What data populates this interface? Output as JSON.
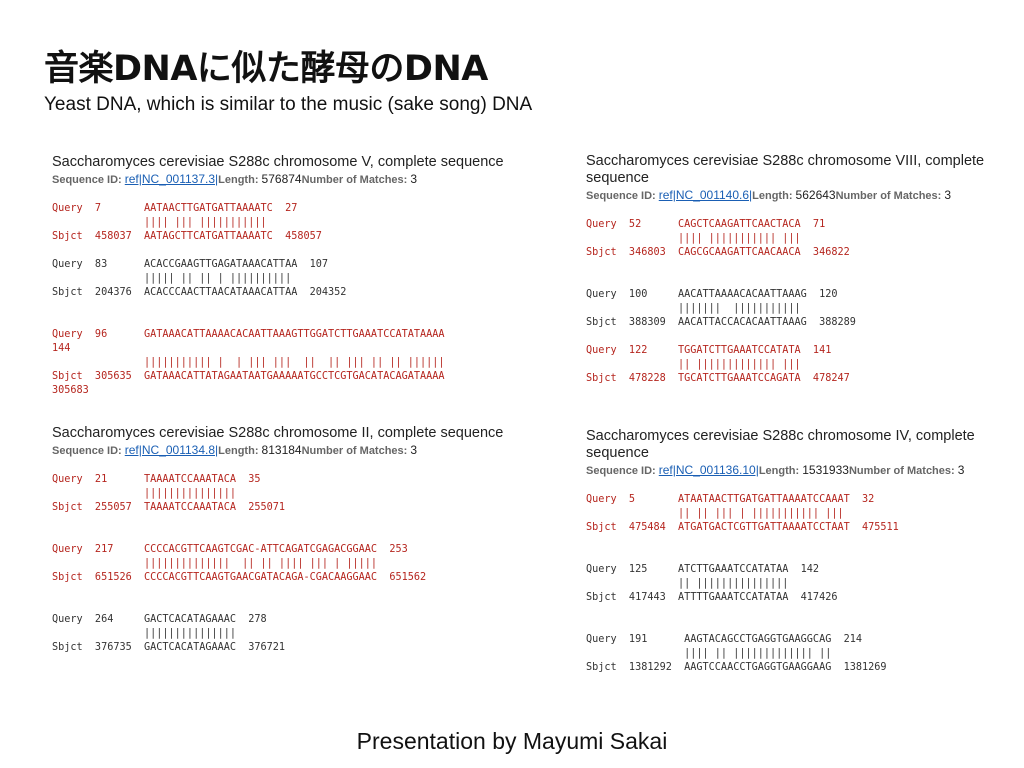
{
  "title": "音楽DNAに似た酵母のDNA",
  "subtitle": "Yeast DNA, which is similar to the music (sake song) DNA",
  "footer": "Presentation by Mayumi Sakai",
  "labels": {
    "seq_id": "Sequence ID: ",
    "length": "Length: ",
    "matches": "Number of Matches: "
  },
  "blocks": [
    {
      "title": "Saccharomyces cerevisiae S288c chromosome V, complete sequence",
      "ref": "ref|NC_001137.3|",
      "length": "576874",
      "matches": "3",
      "alignments": [
        {
          "highlight": true,
          "q": "Query  7       AATAACTTGATGATTAAAATC  27",
          "m": "               |||| ||| |||||||||||",
          "s": "Sbjct  458037  AATAGCTTCATGATTAAAATC  458057"
        },
        {
          "highlight": false,
          "q": "Query  83      ACACCGAAGTTGAGATAAACATTAA  107",
          "m": "               ||||| || || | ||||||||||",
          "s": "Sbjct  204376  ACACCCAACTTAACATAAACATTAA  204352"
        },
        {
          "highlight": true,
          "q": "Query  96      GATAAACATTAAAACACAATTAAAGTTGGATCTTGAAATCCATATAAAA\n144",
          "m": "               ||||||||||| |  | ||| |||  ||  || ||| || || ||||||",
          "s": "Sbjct  305635  GATAAACATTATAGAATAATGAAAAATGCCTCGTGACATACAGATAAAA\n305683"
        }
      ]
    },
    {
      "title": "Saccharomyces cerevisiae S288c chromosome II, complete sequence",
      "ref": "ref|NC_001134.8|",
      "length": "813184",
      "matches": "3",
      "alignments": [
        {
          "highlight": true,
          "q": "Query  21      TAAAATCCAAATACA  35",
          "m": "               |||||||||||||||",
          "s": "Sbjct  255057  TAAAATCCAAATACA  255071"
        },
        {
          "highlight": true,
          "q": "Query  217     CCCCACGTTCAAGTCGAC-ATTCAGATCGAGACGGAAC  253",
          "m": "               ||||||||||||||  || || |||| ||| | |||||",
          "s": "Sbjct  651526  CCCCACGTTCAAGTGAACGATACAGA-CGACAAGGAAC  651562"
        },
        {
          "highlight": false,
          "q": "Query  264     GACTCACATAGAAAC  278",
          "m": "               |||||||||||||||",
          "s": "Sbjct  376735  GACTCACATAGAAAC  376721"
        }
      ]
    },
    {
      "title": "Saccharomyces cerevisiae S288c chromosome VIII, complete sequence",
      "ref": "ref|NC_001140.6|",
      "length": "562643",
      "matches": "3",
      "alignments": [
        {
          "highlight": true,
          "q": "Query  52      CAGCTCAAGATTCAACTACA  71",
          "m": "               |||| ||||||||||| |||",
          "s": "Sbjct  346803  CAGCGCAAGATTCAACAACA  346822"
        },
        {
          "highlight": false,
          "q": "Query  100     AACATTAAAACACAATTAAAG  120",
          "m": "               |||||||  |||||||||||",
          "s": "Sbjct  388309  AACATTACCACACAATTAAAG  388289"
        },
        {
          "highlight": true,
          "q": "Query  122     TGGATCTTGAAATCCATATA  141",
          "m": "               || ||||||||||||| |||",
          "s": "Sbjct  478228  TGCATCTTGAAATCCAGATA  478247"
        }
      ]
    },
    {
      "title": "Saccharomyces cerevisiae S288c chromosome IV, complete sequence",
      "ref": "ref|NC_001136.10|",
      "length": "1531933",
      "matches": "3",
      "alignments": [
        {
          "highlight": true,
          "q": "Query  5       ATAATAACTTGATGATTAAAATCCAAAT  32",
          "m": "               || || ||| | ||||||||||| |||",
          "s": "Sbjct  475484  ATGATGACTCGTTGATTAAAATCCTAAT  475511"
        },
        {
          "highlight": false,
          "q": "Query  125     ATCTTGAAATCCATATAA  142",
          "m": "               || |||||||||||||||",
          "s": "Sbjct  417443  ATTTTGAAATCCATATAA  417426"
        },
        {
          "highlight": false,
          "q": "Query  191      AAGTACAGCCTGAGGTGAAGGCAG  214",
          "m": "                |||| || ||||||||||||| ||",
          "s": "Sbjct  1381292  AAGTCCAACCTGAGGTGAAGGAAG  1381269"
        }
      ]
    }
  ]
}
